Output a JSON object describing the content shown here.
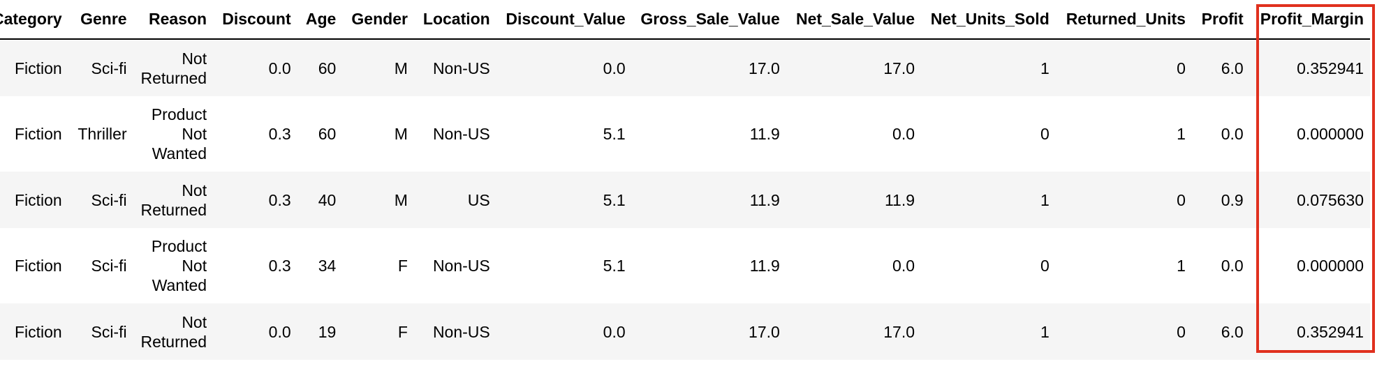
{
  "table": {
    "columns": [
      "Category",
      "Genre",
      "Reason",
      "Discount",
      "Age",
      "Gender",
      "Location",
      "Discount_Value",
      "Gross_Sale_Value",
      "Net_Sale_Value",
      "Net_Units_Sold",
      "Returned_Units",
      "Profit",
      "Profit_Margin"
    ],
    "rows": [
      {
        "category": "Fiction",
        "genre": "Sci-fi",
        "reason": "Not Returned",
        "discount": "0.0",
        "age": "60",
        "gender": "M",
        "location": "Non-US",
        "discount_value": "0.0",
        "gross_sale_value": "17.0",
        "net_sale_value": "17.0",
        "net_units_sold": "1",
        "returned_units": "0",
        "profit": "6.0",
        "profit_margin": "0.352941"
      },
      {
        "category": "Fiction",
        "genre": "Thriller",
        "reason": "Product Not Wanted",
        "discount": "0.3",
        "age": "60",
        "gender": "M",
        "location": "Non-US",
        "discount_value": "5.1",
        "gross_sale_value": "11.9",
        "net_sale_value": "0.0",
        "net_units_sold": "0",
        "returned_units": "1",
        "profit": "0.0",
        "profit_margin": "0.000000"
      },
      {
        "category": "Fiction",
        "genre": "Sci-fi",
        "reason": "Not Returned",
        "discount": "0.3",
        "age": "40",
        "gender": "M",
        "location": "US",
        "discount_value": "5.1",
        "gross_sale_value": "11.9",
        "net_sale_value": "11.9",
        "net_units_sold": "1",
        "returned_units": "0",
        "profit": "0.9",
        "profit_margin": "0.075630"
      },
      {
        "category": "Fiction",
        "genre": "Sci-fi",
        "reason": "Product Not Wanted",
        "discount": "0.3",
        "age": "34",
        "gender": "F",
        "location": "Non-US",
        "discount_value": "5.1",
        "gross_sale_value": "11.9",
        "net_sale_value": "0.0",
        "net_units_sold": "0",
        "returned_units": "1",
        "profit": "0.0",
        "profit_margin": "0.000000"
      },
      {
        "category": "Fiction",
        "genre": "Sci-fi",
        "reason": "Not Returned",
        "discount": "0.0",
        "age": "19",
        "gender": "F",
        "location": "Non-US",
        "discount_value": "0.0",
        "gross_sale_value": "17.0",
        "net_sale_value": "17.0",
        "net_units_sold": "1",
        "returned_units": "0",
        "profit": "6.0",
        "profit_margin": "0.352941"
      }
    ]
  },
  "highlight": {
    "column": "Profit_Margin",
    "color": "#e0301e"
  }
}
